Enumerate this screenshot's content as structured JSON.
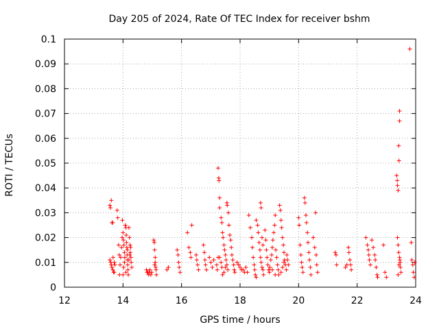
{
  "chart_data": {
    "type": "scatter",
    "title": "Day 205 of 2024, Rate Of TEC Index for receiver bshm",
    "xlabel": "GPS time / hours",
    "ylabel": "ROTI / TECUs",
    "xlim": [
      12,
      24
    ],
    "ylim": [
      0,
      0.1
    ],
    "xticks": [
      "12",
      "14",
      "16",
      "18",
      "20",
      "22",
      "24"
    ],
    "yticks": [
      "0",
      "0.01",
      "0.02",
      "0.03",
      "0.04",
      "0.05",
      "0.06",
      "0.07",
      "0.08",
      "0.09",
      "0.1"
    ],
    "grid": true,
    "marker": "+",
    "color": "#ff0000",
    "series": [
      {
        "points": [
          [
            13.55,
            0.033
          ],
          [
            13.57,
            0.032
          ],
          [
            13.6,
            0.035
          ],
          [
            13.62,
            0.026
          ],
          [
            13.65,
            0.026
          ],
          [
            13.55,
            0.011
          ],
          [
            13.58,
            0.01
          ],
          [
            13.6,
            0.009
          ],
          [
            13.62,
            0.008
          ],
          [
            13.65,
            0.007
          ],
          [
            13.68,
            0.006
          ],
          [
            13.7,
            0.006
          ],
          [
            13.72,
            0.009
          ],
          [
            13.66,
            0.012
          ],
          [
            13.7,
            0.01
          ],
          [
            13.8,
            0.031
          ],
          [
            13.82,
            0.028
          ],
          [
            13.85,
            0.017
          ],
          [
            13.87,
            0.013
          ],
          [
            13.88,
            0.005
          ],
          [
            13.9,
            0.009
          ],
          [
            13.92,
            0.012
          ],
          [
            13.95,
            0.016
          ],
          [
            13.97,
            0.02
          ],
          [
            13.98,
            0.027
          ],
          [
            14.0,
            0.022
          ],
          [
            14.02,
            0.019
          ],
          [
            14.03,
            0.017
          ],
          [
            14.05,
            0.014
          ],
          [
            14.06,
            0.012
          ],
          [
            14.08,
            0.025
          ],
          [
            14.1,
            0.024
          ],
          [
            14.11,
            0.021
          ],
          [
            14.12,
            0.018
          ],
          [
            14.13,
            0.016
          ],
          [
            14.14,
            0.013
          ],
          [
            14.15,
            0.011
          ],
          [
            14.16,
            0.009
          ],
          [
            14.17,
            0.007
          ],
          [
            14.18,
            0.005
          ],
          [
            14.0,
            0.005
          ],
          [
            14.02,
            0.008
          ],
          [
            14.05,
            0.01
          ],
          [
            14.1,
            0.006
          ],
          [
            14.15,
            0.015
          ],
          [
            14.2,
            0.024
          ],
          [
            14.22,
            0.02
          ],
          [
            14.24,
            0.017
          ],
          [
            14.25,
            0.014
          ],
          [
            14.27,
            0.012
          ],
          [
            14.28,
            0.01
          ],
          [
            14.3,
            0.008
          ],
          [
            14.2,
            0.011
          ],
          [
            14.23,
            0.013
          ],
          [
            14.26,
            0.016
          ],
          [
            14.8,
            0.007
          ],
          [
            14.82,
            0.006
          ],
          [
            14.85,
            0.006
          ],
          [
            14.88,
            0.005
          ],
          [
            14.9,
            0.006
          ],
          [
            14.92,
            0.007
          ],
          [
            14.95,
            0.005
          ],
          [
            14.98,
            0.006
          ],
          [
            15.05,
            0.019
          ],
          [
            15.07,
            0.018
          ],
          [
            15.08,
            0.015
          ],
          [
            15.1,
            0.012
          ],
          [
            15.1,
            0.01
          ],
          [
            15.12,
            0.008
          ],
          [
            15.13,
            0.007
          ],
          [
            15.14,
            0.005
          ],
          [
            15.08,
            0.009
          ],
          [
            15.5,
            0.007
          ],
          [
            15.55,
            0.008
          ],
          [
            15.85,
            0.015
          ],
          [
            15.88,
            0.013
          ],
          [
            15.9,
            0.01
          ],
          [
            15.92,
            0.008
          ],
          [
            15.95,
            0.006
          ],
          [
            16.2,
            0.022
          ],
          [
            16.25,
            0.016
          ],
          [
            16.3,
            0.014
          ],
          [
            16.32,
            0.012
          ],
          [
            16.35,
            0.025
          ],
          [
            16.5,
            0.013
          ],
          [
            16.52,
            0.011
          ],
          [
            16.55,
            0.009
          ],
          [
            16.58,
            0.007
          ],
          [
            16.75,
            0.017
          ],
          [
            16.78,
            0.014
          ],
          [
            16.8,
            0.011
          ],
          [
            16.82,
            0.009
          ],
          [
            16.85,
            0.007
          ],
          [
            16.95,
            0.012
          ],
          [
            17.0,
            0.01
          ],
          [
            17.05,
            0.008
          ],
          [
            17.1,
            0.011
          ],
          [
            17.2,
            0.009
          ],
          [
            17.22,
            0.007
          ],
          [
            17.25,
            0.012
          ],
          [
            17.25,
            0.048
          ],
          [
            17.27,
            0.044
          ],
          [
            17.28,
            0.043
          ],
          [
            17.3,
            0.036
          ],
          [
            17.3,
            0.032
          ],
          [
            17.35,
            0.028
          ],
          [
            17.38,
            0.026
          ],
          [
            17.4,
            0.022
          ],
          [
            17.42,
            0.02
          ],
          [
            17.45,
            0.017
          ],
          [
            17.47,
            0.015
          ],
          [
            17.5,
            0.013
          ],
          [
            17.52,
            0.011
          ],
          [
            17.55,
            0.009
          ],
          [
            17.58,
            0.007
          ],
          [
            17.4,
            0.005
          ],
          [
            17.45,
            0.006
          ],
          [
            17.5,
            0.008
          ],
          [
            17.55,
            0.034
          ],
          [
            17.56,
            0.033
          ],
          [
            17.6,
            0.03
          ],
          [
            17.62,
            0.025
          ],
          [
            17.65,
            0.021
          ],
          [
            17.68,
            0.019
          ],
          [
            17.7,
            0.016
          ],
          [
            17.72,
            0.013
          ],
          [
            17.75,
            0.011
          ],
          [
            17.78,
            0.009
          ],
          [
            17.8,
            0.007
          ],
          [
            17.82,
            0.006
          ],
          [
            17.3,
            0.012
          ],
          [
            17.35,
            0.01
          ],
          [
            17.38,
            0.008
          ],
          [
            17.9,
            0.01
          ],
          [
            17.95,
            0.009
          ],
          [
            18.0,
            0.008
          ],
          [
            18.05,
            0.007
          ],
          [
            18.1,
            0.007
          ],
          [
            18.15,
            0.006
          ],
          [
            18.2,
            0.008
          ],
          [
            18.25,
            0.006
          ],
          [
            18.3,
            0.029
          ],
          [
            18.35,
            0.024
          ],
          [
            18.4,
            0.02
          ],
          [
            18.42,
            0.016
          ],
          [
            18.45,
            0.012
          ],
          [
            18.48,
            0.009
          ],
          [
            18.5,
            0.007
          ],
          [
            18.52,
            0.005
          ],
          [
            18.55,
            0.004
          ],
          [
            18.55,
            0.027
          ],
          [
            18.6,
            0.025
          ],
          [
            18.62,
            0.022
          ],
          [
            18.65,
            0.018
          ],
          [
            18.68,
            0.015
          ],
          [
            18.7,
            0.012
          ],
          [
            18.72,
            0.01
          ],
          [
            18.75,
            0.008
          ],
          [
            18.78,
            0.007
          ],
          [
            18.8,
            0.005
          ],
          [
            18.7,
            0.034
          ],
          [
            18.72,
            0.032
          ],
          [
            18.75,
            0.02
          ],
          [
            18.78,
            0.017
          ],
          [
            18.85,
            0.023
          ],
          [
            18.88,
            0.019
          ],
          [
            18.9,
            0.015
          ],
          [
            18.92,
            0.012
          ],
          [
            18.95,
            0.009
          ],
          [
            18.98,
            0.007
          ],
          [
            19.0,
            0.006
          ],
          [
            19.02,
            0.008
          ],
          [
            19.05,
            0.011
          ],
          [
            19.08,
            0.013
          ],
          [
            19.1,
            0.016
          ],
          [
            19.12,
            0.019
          ],
          [
            19.15,
            0.022
          ],
          [
            19.18,
            0.025
          ],
          [
            19.2,
            0.029
          ],
          [
            19.22,
            0.015
          ],
          [
            19.25,
            0.012
          ],
          [
            19.28,
            0.009
          ],
          [
            19.3,
            0.007
          ],
          [
            19.32,
            0.005
          ],
          [
            19.35,
            0.033
          ],
          [
            19.38,
            0.031
          ],
          [
            19.4,
            0.027
          ],
          [
            19.42,
            0.024
          ],
          [
            19.45,
            0.02
          ],
          [
            19.48,
            0.017
          ],
          [
            19.5,
            0.014
          ],
          [
            19.52,
            0.011
          ],
          [
            19.55,
            0.009
          ],
          [
            19.58,
            0.007
          ],
          [
            19.4,
            0.006
          ],
          [
            19.45,
            0.008
          ],
          [
            19.5,
            0.01
          ],
          [
            19.6,
            0.013
          ],
          [
            19.62,
            0.011
          ],
          [
            19.65,
            0.009
          ],
          [
            19.2,
            0.005
          ],
          [
            19.1,
            0.007
          ],
          [
            20.0,
            0.028
          ],
          [
            20.02,
            0.025
          ],
          [
            20.05,
            0.017
          ],
          [
            20.08,
            0.013
          ],
          [
            20.1,
            0.01
          ],
          [
            20.12,
            0.008
          ],
          [
            20.15,
            0.006
          ],
          [
            20.2,
            0.036
          ],
          [
            20.22,
            0.034
          ],
          [
            20.25,
            0.029
          ],
          [
            20.27,
            0.026
          ],
          [
            20.3,
            0.022
          ],
          [
            20.32,
            0.018
          ],
          [
            20.35,
            0.014
          ],
          [
            20.37,
            0.011
          ],
          [
            20.4,
            0.008
          ],
          [
            20.42,
            0.005
          ],
          [
            20.5,
            0.02
          ],
          [
            20.55,
            0.016
          ],
          [
            20.58,
            0.03
          ],
          [
            20.6,
            0.013
          ],
          [
            20.62,
            0.009
          ],
          [
            20.65,
            0.006
          ],
          [
            21.25,
            0.014
          ],
          [
            21.28,
            0.013
          ],
          [
            21.3,
            0.009
          ],
          [
            21.6,
            0.008
          ],
          [
            21.65,
            0.009
          ],
          [
            21.7,
            0.016
          ],
          [
            21.72,
            0.014
          ],
          [
            21.75,
            0.011
          ],
          [
            21.78,
            0.009
          ],
          [
            21.8,
            0.007
          ],
          [
            22.3,
            0.02
          ],
          [
            22.35,
            0.017
          ],
          [
            22.38,
            0.015
          ],
          [
            22.4,
            0.013
          ],
          [
            22.42,
            0.011
          ],
          [
            22.45,
            0.009
          ],
          [
            22.5,
            0.019
          ],
          [
            22.55,
            0.016
          ],
          [
            22.6,
            0.013
          ],
          [
            22.62,
            0.011
          ],
          [
            22.65,
            0.008
          ],
          [
            22.68,
            0.005
          ],
          [
            22.7,
            0.004
          ],
          [
            22.9,
            0.017
          ],
          [
            22.95,
            0.006
          ],
          [
            23.0,
            0.004
          ],
          [
            23.35,
            0.045
          ],
          [
            23.37,
            0.043
          ],
          [
            23.38,
            0.041
          ],
          [
            23.4,
            0.039
          ],
          [
            23.42,
            0.057
          ],
          [
            23.43,
            0.051
          ],
          [
            23.45,
            0.067
          ],
          [
            23.45,
            0.071
          ],
          [
            23.38,
            0.02
          ],
          [
            23.4,
            0.017
          ],
          [
            23.42,
            0.014
          ],
          [
            23.45,
            0.012
          ],
          [
            23.47,
            0.01
          ],
          [
            23.48,
            0.008
          ],
          [
            23.5,
            0.006
          ],
          [
            23.4,
            0.005
          ],
          [
            23.43,
            0.009
          ],
          [
            23.46,
            0.011
          ],
          [
            23.8,
            0.096
          ],
          [
            23.85,
            0.018
          ],
          [
            23.87,
            0.011
          ],
          [
            23.9,
            0.009
          ],
          [
            23.92,
            0.006
          ],
          [
            23.95,
            0.004
          ],
          [
            23.97,
            0.01
          ]
        ]
      }
    ]
  }
}
